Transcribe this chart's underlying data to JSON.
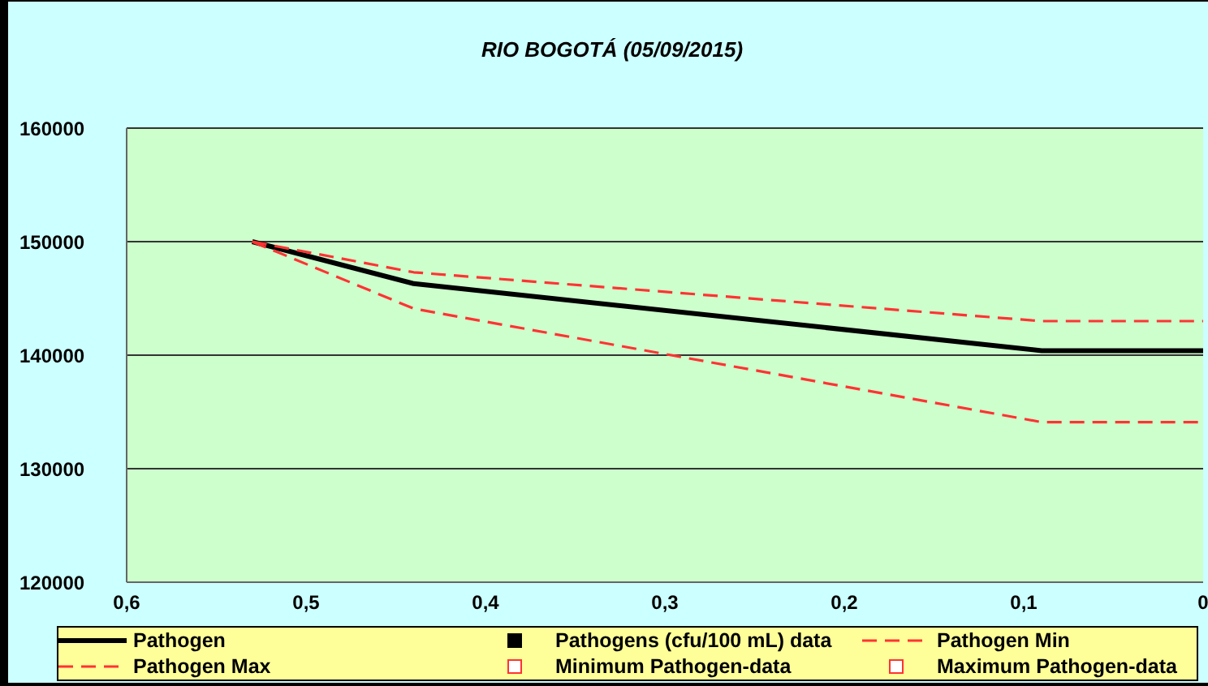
{
  "chart_data": {
    "type": "line",
    "title": "RIO BOGOTÁ (05/09/2015)",
    "xlim": [
      0.6,
      0
    ],
    "xticks": [
      {
        "value": 0.6,
        "label": "0,6"
      },
      {
        "value": 0.5,
        "label": "0,5"
      },
      {
        "value": 0.4,
        "label": "0,4"
      },
      {
        "value": 0.3,
        "label": "0,3"
      },
      {
        "value": 0.2,
        "label": "0,2"
      },
      {
        "value": 0.1,
        "label": "0,1"
      },
      0
    ],
    "ylim": [
      120000,
      160000
    ],
    "yticks": [
      120000,
      130000,
      140000,
      150000,
      160000
    ],
    "grid": "y",
    "legend": "bottom",
    "marker": "none",
    "series": [
      {
        "name": "Pathogen",
        "color": "#000000",
        "line_style": "solid",
        "x": [
          0.53,
          0.44,
          0.09,
          0
        ],
        "values": [
          150000,
          146300,
          140400,
          140400
        ]
      },
      {
        "name": "Pathogens (cfu/100 mL) data",
        "type": "scatter",
        "marker": "square",
        "color": "#000000"
      },
      {
        "name": "Pathogen Min",
        "color": "#ff3333",
        "line_style": "dashed",
        "x": [
          0.53,
          0.44,
          0.09,
          0
        ],
        "values": [
          150000,
          144100,
          134100,
          134100
        ]
      },
      {
        "name": "Pathogen Max",
        "color": "#ff3333",
        "line_style": "dashed",
        "x": [
          0.53,
          0.44,
          0.09,
          0
        ],
        "values": [
          150000,
          147300,
          143000,
          143000
        ]
      },
      {
        "name": "Minimum Pathogen-data",
        "type": "scatter",
        "marker": "square",
        "color": "#ff3333"
      },
      {
        "name": "Maximum Pathogen-data",
        "type": "scatter",
        "marker": "square",
        "color": "#ff3333"
      }
    ]
  }
}
